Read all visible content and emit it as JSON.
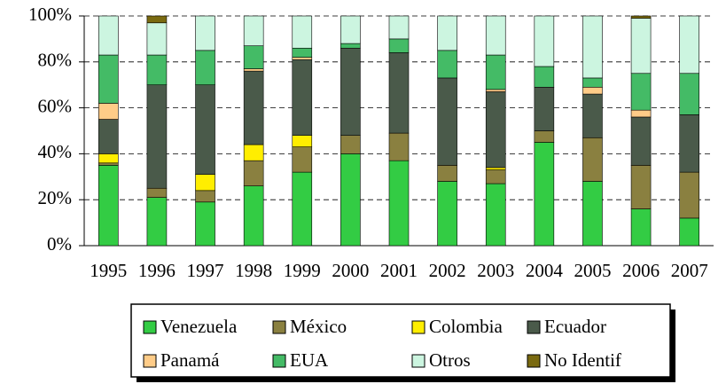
{
  "chart_data": {
    "type": "stacked_bar_100",
    "categories": [
      "1995",
      "1996",
      "1997",
      "1998",
      "1999",
      "2000",
      "2001",
      "2002",
      "2003",
      "2004",
      "2005",
      "2006",
      "2007"
    ],
    "series": [
      {
        "name": "Venezuela",
        "color": "#33cc44",
        "values": [
          35,
          21,
          19,
          26,
          32,
          40,
          37,
          28,
          27,
          45,
          28,
          16,
          12
        ]
      },
      {
        "name": "México",
        "color": "#8a8040",
        "values": [
          1,
          4,
          5,
          11,
          11,
          8,
          12,
          7,
          6,
          5,
          19,
          19,
          20
        ]
      },
      {
        "name": "Colombia",
        "color": "#ffee00",
        "values": [
          4,
          0,
          7,
          7,
          5,
          0,
          0,
          0,
          1,
          0,
          0,
          0,
          0
        ]
      },
      {
        "name": "Ecuador",
        "color": "#4a5a4a",
        "values": [
          15,
          45,
          39,
          32,
          33,
          38,
          35,
          38,
          33,
          19,
          19,
          21,
          25
        ]
      },
      {
        "name": "Panamá",
        "color": "#ffcc88",
        "values": [
          7,
          0,
          0,
          1,
          1,
          0,
          0,
          0,
          1,
          0,
          3,
          3,
          0
        ]
      },
      {
        "name": "EUA",
        "color": "#44bb66",
        "values": [
          21,
          13,
          15,
          10,
          4,
          2,
          6,
          12,
          15,
          9,
          4,
          16,
          18
        ]
      },
      {
        "name": "Otros",
        "color": "#ccf5e0",
        "values": [
          17,
          14,
          15,
          13,
          14,
          12,
          10,
          15,
          17,
          22,
          27,
          24,
          25
        ]
      },
      {
        "name": "No Identif",
        "color": "#7a6a10",
        "values": [
          0,
          3,
          0,
          0,
          0,
          0,
          0,
          0,
          0,
          0,
          0,
          1,
          0
        ]
      }
    ],
    "ylim": [
      0,
      100
    ],
    "yticks": [
      {
        "value": 0,
        "label": "0%"
      },
      {
        "value": 20,
        "label": "20%"
      },
      {
        "value": 40,
        "label": "40%"
      },
      {
        "value": 60,
        "label": "60%"
      },
      {
        "value": 80,
        "label": "80%"
      },
      {
        "value": 100,
        "label": "100%"
      }
    ],
    "grid": true
  }
}
